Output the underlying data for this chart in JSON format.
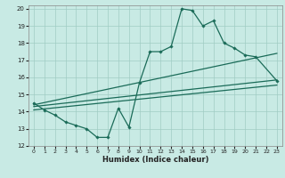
{
  "xlabel": "Humidex (Indice chaleur)",
  "xlim": [
    -0.5,
    23.5
  ],
  "ylim": [
    12,
    20.2
  ],
  "yticks": [
    12,
    13,
    14,
    15,
    16,
    17,
    18,
    19,
    20
  ],
  "xticks": [
    0,
    1,
    2,
    3,
    4,
    5,
    6,
    7,
    8,
    9,
    10,
    11,
    12,
    13,
    14,
    15,
    16,
    17,
    18,
    19,
    20,
    21,
    22,
    23
  ],
  "background_color": "#c8eae4",
  "grid_color": "#a0ccc4",
  "line_color": "#1a6b58",
  "zigzag_x": [
    0,
    1,
    2,
    3,
    4,
    5,
    6,
    7,
    8,
    9,
    10,
    11,
    12,
    13,
    14,
    15,
    16,
    17,
    18,
    19,
    20,
    21,
    23
  ],
  "zigzag_y": [
    14.5,
    14.1,
    13.8,
    13.4,
    13.2,
    13.0,
    12.5,
    12.5,
    14.2,
    13.1,
    15.7,
    17.5,
    17.5,
    17.8,
    20.0,
    19.9,
    19.0,
    19.3,
    18.0,
    17.7,
    17.3,
    17.2,
    15.8
  ],
  "line1_x": [
    0,
    23
  ],
  "line1_y": [
    14.4,
    17.3
  ],
  "line2_x": [
    0,
    23
  ],
  "line2_y": [
    14.3,
    15.8
  ],
  "line3_x": [
    0,
    23
  ],
  "line3_y": [
    14.2,
    15.6
  ],
  "reg_lines": [
    {
      "x": [
        0,
        23
      ],
      "y": [
        14.4,
        17.4
      ]
    },
    {
      "x": [
        0,
        23
      ],
      "y": [
        14.3,
        15.85
      ]
    },
    {
      "x": [
        0,
        23
      ],
      "y": [
        14.1,
        15.55
      ]
    }
  ]
}
